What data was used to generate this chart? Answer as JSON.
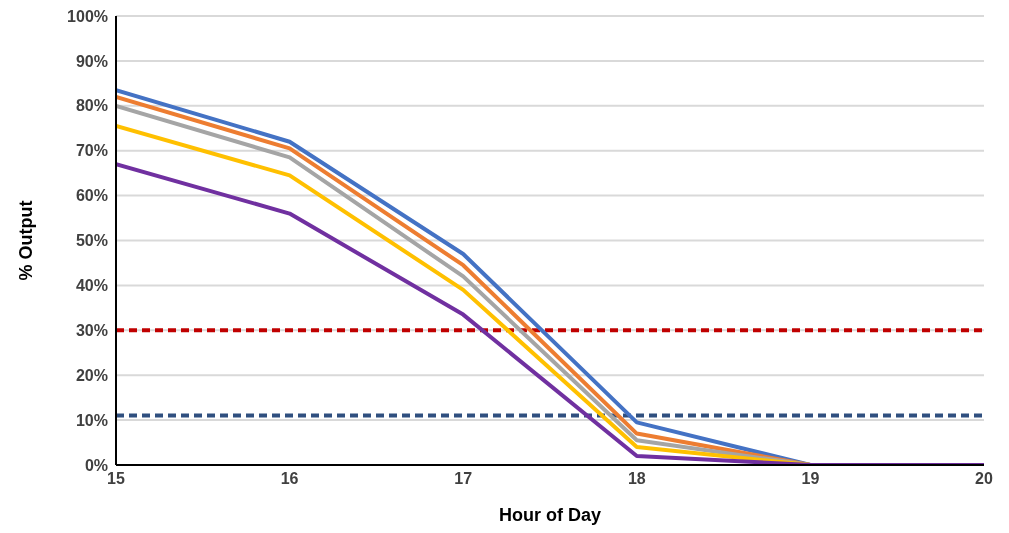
{
  "chart_data": {
    "type": "line",
    "xlabel": "Hour of Day",
    "ylabel": "% Output",
    "x": [
      15,
      16,
      17,
      18,
      19,
      20
    ],
    "xlim": [
      15,
      20
    ],
    "xticks": [
      15,
      16,
      17,
      18,
      19,
      20
    ],
    "ylim": [
      0,
      100
    ],
    "yticks": [
      {
        "value": 0,
        "label": "0%"
      },
      {
        "value": 10,
        "label": "10%"
      },
      {
        "value": 20,
        "label": "20%"
      },
      {
        "value": 30,
        "label": "30%"
      },
      {
        "value": 40,
        "label": "40%"
      },
      {
        "value": 50,
        "label": "50%"
      },
      {
        "value": 60,
        "label": "60%"
      },
      {
        "value": 70,
        "label": "70%"
      },
      {
        "value": 80,
        "label": "80%"
      },
      {
        "value": 90,
        "label": "90%"
      },
      {
        "value": 100,
        "label": "100%"
      }
    ],
    "grid": "y",
    "marker": "none",
    "line_style": "solid",
    "series": [
      {
        "color": "#4472c4",
        "values": [
          83.5,
          72,
          47,
          9.5,
          0,
          0
        ]
      },
      {
        "color": "#ed7d31",
        "values": [
          82,
          70.5,
          44.5,
          7,
          0,
          0
        ]
      },
      {
        "color": "#a5a5a5",
        "values": [
          80,
          68.5,
          42,
          5.5,
          0,
          0
        ]
      },
      {
        "color": "#ffc000",
        "values": [
          75.5,
          64.5,
          39,
          4,
          0,
          0
        ]
      },
      {
        "color": "#7030a0",
        "values": [
          67,
          56,
          33.5,
          2,
          0,
          0
        ]
      }
    ],
    "ref_lines": [
      {
        "axis": "y",
        "value": 30,
        "color": "#c00000",
        "line_style": "dashed"
      },
      {
        "axis": "y",
        "value": 11,
        "color": "#2f4f7f",
        "line_style": "dashed"
      }
    ]
  }
}
